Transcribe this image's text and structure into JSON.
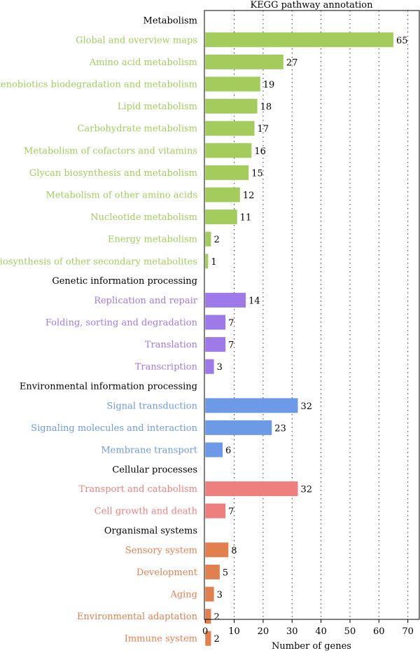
{
  "chart_data": {
    "type": "bar",
    "orientation": "horizontal",
    "title": "KEGG pathway annotation",
    "xlabel": "Number of genes",
    "ylabel": "",
    "xlim": [
      0,
      74
    ],
    "xticks": [
      0,
      10,
      20,
      30,
      40,
      50,
      60,
      70
    ],
    "grid": "dotted vertical",
    "groups": [
      {
        "name": "Metabolism",
        "color": "#a3cc5c",
        "categories": [
          "Global and overview maps",
          "Amino acid metabolism",
          "Xenobiotics biodegradation and metabolism",
          "Lipid metabolism",
          "Carbohydrate metabolism",
          "Metabolism of cofactors and vitamins",
          "Glycan biosynthesis and metabolism",
          "Metabolism of other amino acids",
          "Nucleotide metabolism",
          "Energy metabolism",
          "Biosynthesis of other secondary metabolites"
        ],
        "values": [
          65,
          27,
          19,
          18,
          17,
          16,
          15,
          12,
          11,
          2,
          1
        ]
      },
      {
        "name": "Genetic information processing",
        "color": "#9e79ea",
        "categories": [
          "Replication and repair",
          "Folding, sorting and degradation",
          "Translation",
          "Transcription"
        ],
        "values": [
          14,
          7,
          7,
          3
        ]
      },
      {
        "name": "Environmental information processing",
        "color": "#6d9ae6",
        "categories": [
          "Signal transduction",
          "Signaling molecules and interaction",
          "Membrane transport"
        ],
        "values": [
          32,
          23,
          6
        ]
      },
      {
        "name": "Cellular processes",
        "color": "#ee7f7f",
        "categories": [
          "Transport and catabolism",
          "Cell growth and death"
        ],
        "values": [
          32,
          7
        ]
      },
      {
        "name": "Organismal systems",
        "color": "#e17f4f",
        "categories": [
          "Sensory system",
          "Development",
          "Aging",
          "Environmental adaptation",
          "Immune system"
        ],
        "values": [
          8,
          5,
          3,
          2,
          2
        ]
      }
    ]
  }
}
